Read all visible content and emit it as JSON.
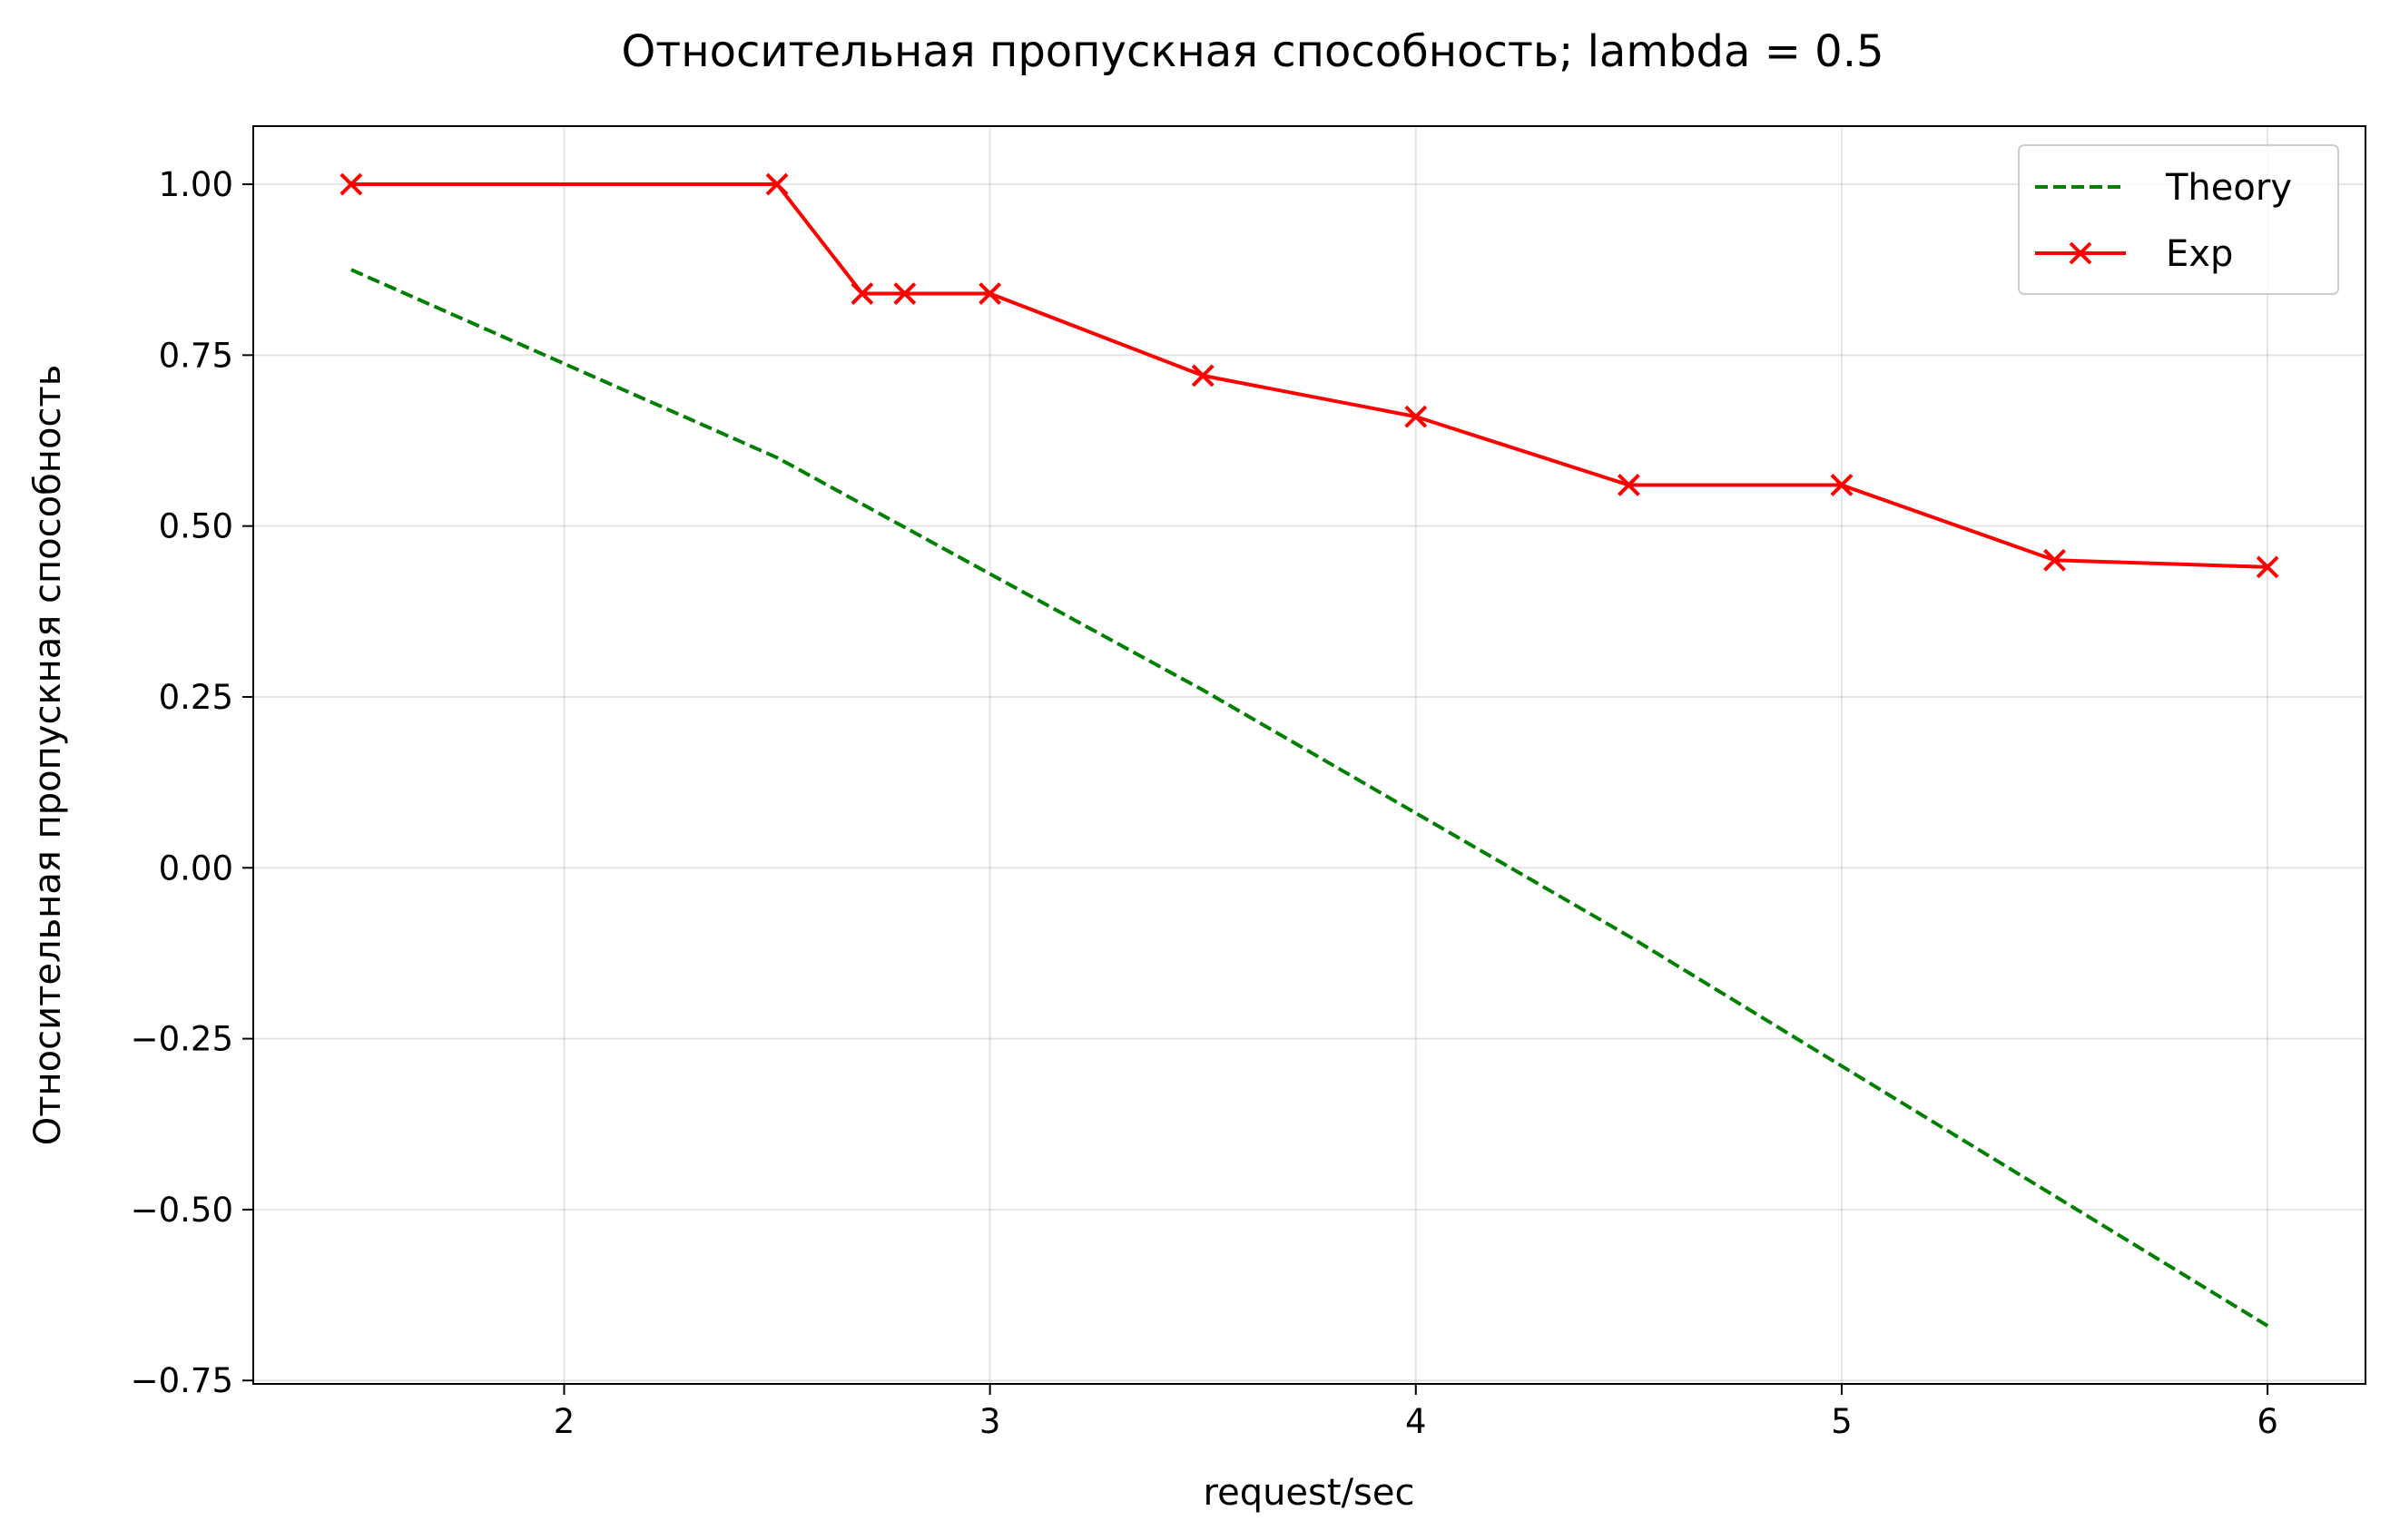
{
  "chart_data": {
    "type": "line",
    "title": "Относительная пропускная способность; lambda = 0.5",
    "xlabel": "request/sec",
    "ylabel": "Относительная пропускная способность",
    "xlim": [
      1.27,
      6.23
    ],
    "ylim": [
      -0.755,
      1.085
    ],
    "xticks": [
      2,
      3,
      4,
      5,
      6
    ],
    "yticks": [
      1.0,
      0.75,
      0.5,
      0.25,
      0.0,
      -0.25,
      -0.5,
      -0.75
    ],
    "xtick_labels": [
      "2",
      "3",
      "4",
      "5",
      "6"
    ],
    "ytick_labels": [
      "1.00",
      "0.75",
      "0.50",
      "0.25",
      "0.00",
      "−0.25",
      "−0.50",
      "−0.75"
    ],
    "grid": true,
    "legend_position": "top-right",
    "series": [
      {
        "name": "Theory",
        "color": "#008000",
        "style": "dashed",
        "marker": "none",
        "x": [
          1.5,
          2.5,
          3.0,
          3.5,
          4.0,
          4.5,
          5.0,
          5.5,
          6.0
        ],
        "y": [
          0.875,
          0.6,
          0.43,
          0.26,
          0.08,
          -0.1,
          -0.29,
          -0.48,
          -0.67
        ]
      },
      {
        "name": "Exp",
        "color": "#ff0000",
        "style": "solid",
        "marker": "x",
        "x": [
          1.5,
          2.5,
          2.7,
          2.8,
          3.0,
          3.5,
          4.0,
          4.5,
          5.0,
          5.5,
          6.0
        ],
        "y": [
          1.0,
          1.0,
          0.84,
          0.84,
          0.84,
          0.72,
          0.66,
          0.56,
          0.56,
          0.45,
          0.44
        ]
      }
    ]
  }
}
